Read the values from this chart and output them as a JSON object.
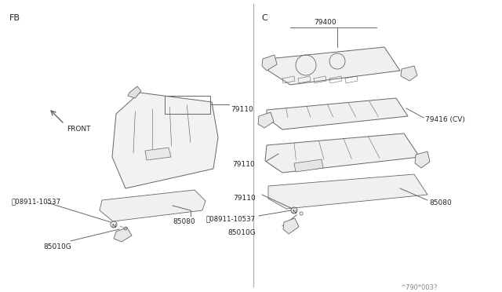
{
  "bg_color": "#ffffff",
  "line_color": "#666666",
  "fill_color": "#f5f5f5",
  "text_color": "#222222",
  "fb_label": "FB",
  "c_label": "C",
  "front_label": "FRONT",
  "footer_label": "^790*003?",
  "left": {
    "panel_label": "79110",
    "bumper_label": "85080",
    "nut_label": "08911-10537",
    "bracket_label": "85010G"
  },
  "right": {
    "parcel_label": "79400",
    "panel_label": "79110",
    "trim_label": "79416 (CV)",
    "bumper_label": "85080",
    "nut_label": "08911-10537",
    "bracket_label": "85010G"
  }
}
